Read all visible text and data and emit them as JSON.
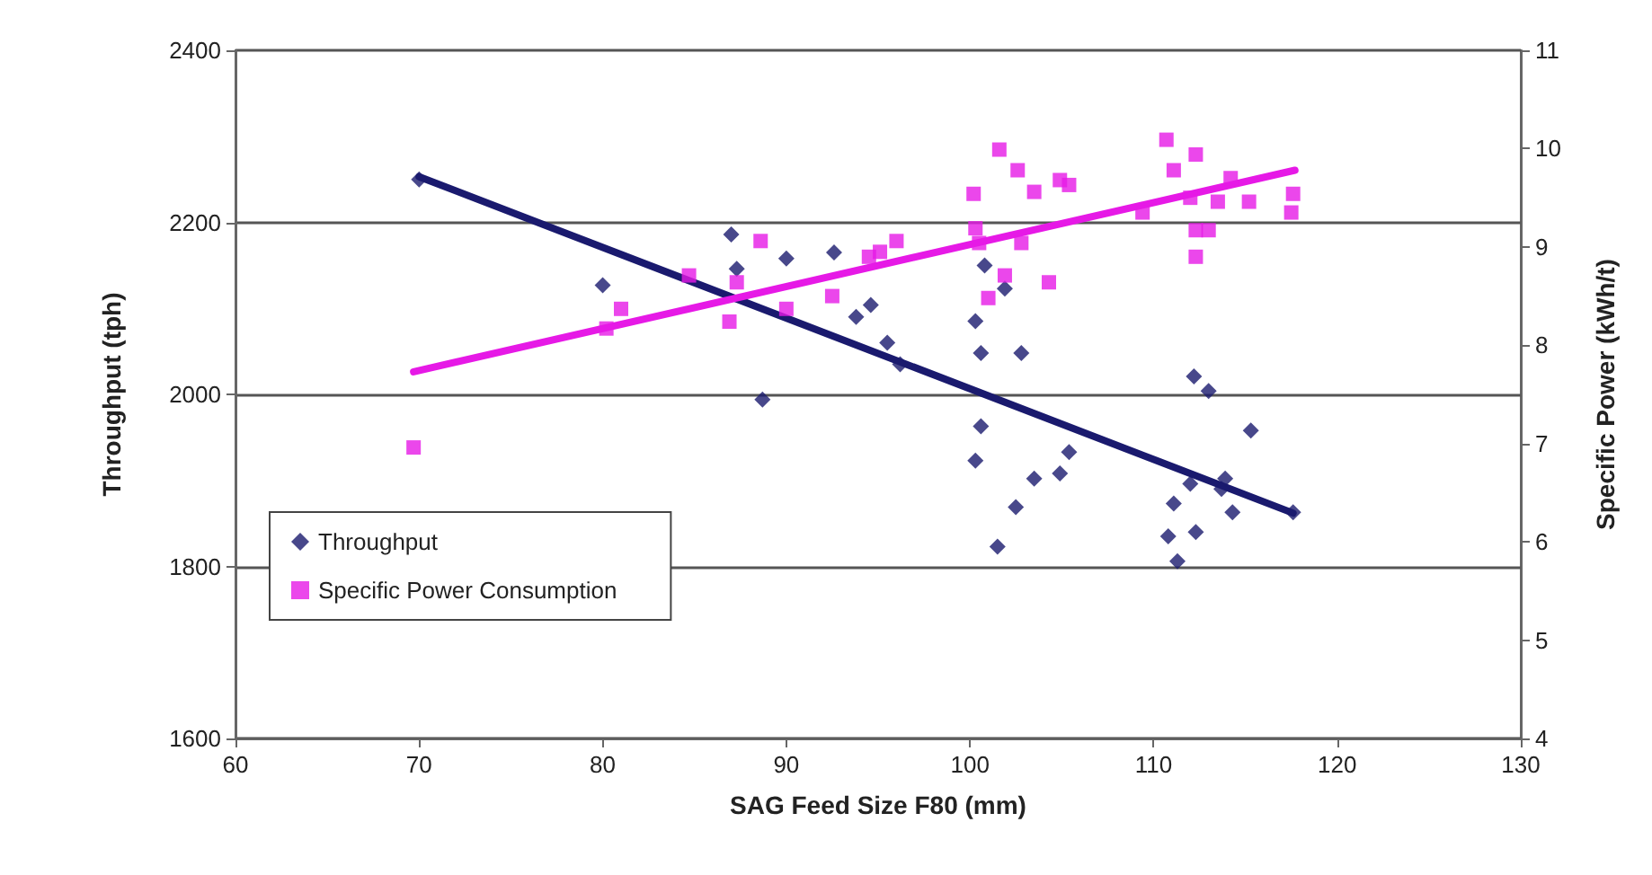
{
  "chart_data": {
    "type": "scatter",
    "xlabel": "SAG Feed Size F80 (mm)",
    "ylabel": "Throughput (tph)",
    "y2label": "Specific Power (kWh/t)",
    "xlim": [
      60,
      130
    ],
    "xticks": [
      60,
      70,
      80,
      90,
      100,
      110,
      120,
      130
    ],
    "ylim": [
      1600,
      2400
    ],
    "yticks": [
      1600,
      1800,
      2000,
      2200,
      2400
    ],
    "y2lim": [
      4,
      11
    ],
    "y2ticks": [
      4,
      5,
      6,
      7,
      8,
      9,
      10,
      11
    ],
    "grid": "y",
    "legend": "left",
    "series": [
      {
        "name": "Throughput",
        "marker": "diamond",
        "color": "#1a1a6e",
        "x": [
          70,
          80,
          87,
          87.3,
          90,
          92.6,
          94.6,
          93.8,
          95.5,
          96.2,
          88.7,
          100.8,
          101.9,
          100.3,
          100.6,
          102.8,
          100.6,
          100.3,
          105.4,
          104.9,
          103.5,
          102.5,
          101.5,
          112.2,
          113,
          115.3,
          112,
          111.1,
          110.8,
          112.3,
          111.3,
          113.7,
          114.3,
          117.6,
          113.9
        ],
        "values": [
          2250,
          2127,
          2186,
          2146,
          2158,
          2165,
          2104,
          2090,
          2060,
          2035,
          1994,
          2150,
          2123,
          2085,
          2048,
          2048,
          1963,
          1923,
          1933,
          1908,
          1902,
          1869,
          1823,
          2021,
          2004,
          1958,
          1896,
          1873,
          1835,
          1840,
          1806,
          1890,
          1863,
          1863,
          1902
        ]
      },
      {
        "name": "Specific Power Consumption",
        "marker": "square",
        "axis": "y2",
        "color": "#e619e6",
        "x": [
          69.7,
          81,
          80.2,
          84.7,
          87.3,
          86.9,
          88.6,
          90,
          92.5,
          94.5,
          96,
          95.1,
          100.2,
          100.3,
          100.5,
          101,
          101.9,
          101.6,
          102.6,
          103.5,
          104.9,
          105.4,
          104.3,
          102.8,
          109.4,
          110.7,
          111.1,
          112.3,
          112,
          112.3,
          113,
          112.3,
          113.5,
          114.2,
          115.2,
          117.6,
          117.5
        ],
        "values": [
          6.96,
          8.37,
          8.17,
          8.71,
          8.64,
          8.24,
          9.06,
          8.37,
          8.5,
          8.9,
          9.06,
          8.95,
          9.54,
          9.19,
          9.04,
          8.48,
          8.71,
          9.99,
          9.78,
          9.56,
          9.68,
          9.63,
          8.64,
          9.04,
          9.35,
          10.09,
          9.78,
          9.94,
          9.5,
          9.17,
          9.17,
          8.9,
          9.46,
          9.7,
          9.46,
          9.54,
          9.35
        ]
      },
      {
        "type": "line",
        "marker": "none",
        "color": "#1a1a6e",
        "x": [
          70,
          117.6
        ],
        "values": [
          2253,
          1862
        ]
      },
      {
        "type": "line",
        "marker": "none",
        "axis": "y2",
        "color": "#e619e6",
        "x": [
          69.7,
          117.7
        ],
        "values": [
          7.73,
          9.78
        ]
      }
    ]
  }
}
